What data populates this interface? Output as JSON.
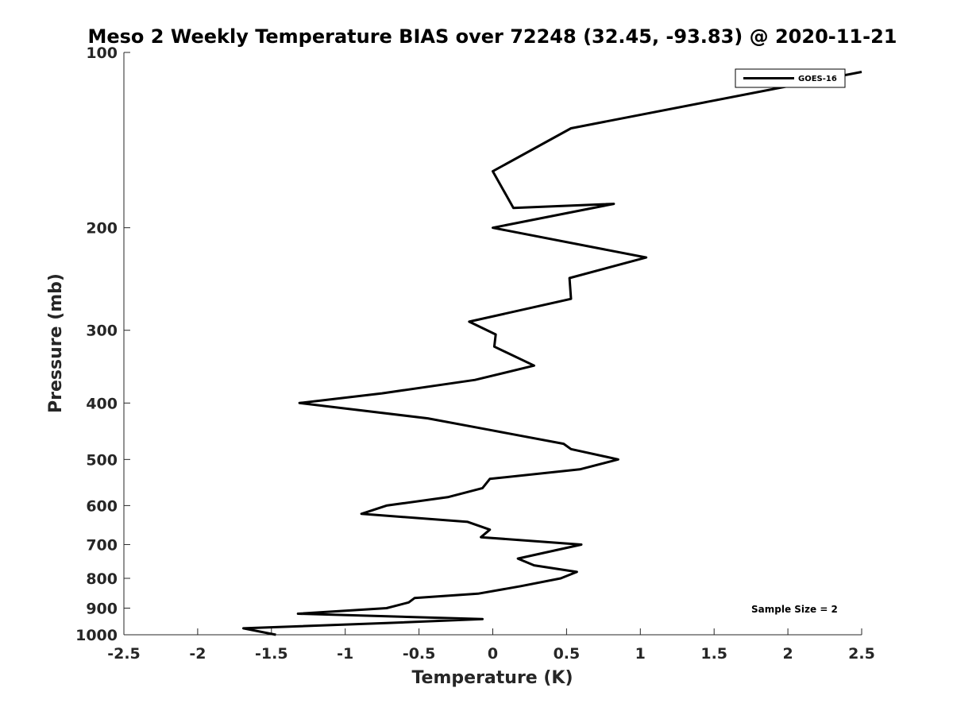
{
  "chart_data": {
    "type": "line",
    "title": "Meso 2 Weekly Temperature BIAS over 72248 (32.45, -93.83) @ 2020-11-21",
    "xlabel": "Temperature (K)",
    "ylabel": "Pressure (mb)",
    "xlim": [
      -2.5,
      2.5
    ],
    "ylim": [
      100,
      1000
    ],
    "y_scale": "log",
    "y_reversed": true,
    "grid": false,
    "xticks": [
      -2.5,
      -2,
      -1.5,
      -1,
      -0.5,
      0,
      0.5,
      1,
      1.5,
      2,
      2.5
    ],
    "xtick_labels": [
      "-2.5",
      "-2",
      "-1.5",
      "-1",
      "-0.5",
      "0",
      "0.5",
      "1",
      "1.5",
      "2",
      "2.5"
    ],
    "yticks": [
      100,
      200,
      300,
      400,
      500,
      600,
      700,
      800,
      900,
      1000
    ],
    "ytick_labels": [
      "100",
      "200",
      "300",
      "400",
      "500",
      "600",
      "700",
      "800",
      "900",
      "1000"
    ],
    "legend_position": "top-right",
    "annotation": "Sample Size = 2",
    "series": [
      {
        "name": "GOES-16",
        "color": "#000000",
        "points": [
          [
            2.5,
            108
          ],
          [
            0.53,
            135
          ],
          [
            0.0,
            160
          ],
          [
            0.14,
            185
          ],
          [
            0.82,
            182
          ],
          [
            0.0,
            200
          ],
          [
            1.04,
            225
          ],
          [
            0.52,
            244
          ],
          [
            0.53,
            265
          ],
          [
            -0.16,
            290
          ],
          [
            0.02,
            305
          ],
          [
            0.01,
            320
          ],
          [
            0.28,
            345
          ],
          [
            -0.12,
            365
          ],
          [
            -0.75,
            385
          ],
          [
            -1.31,
            400
          ],
          [
            -0.44,
            425
          ],
          [
            -0.02,
            445
          ],
          [
            0.48,
            470
          ],
          [
            0.53,
            480
          ],
          [
            0.85,
            500
          ],
          [
            0.59,
            520
          ],
          [
            -0.02,
            540
          ],
          [
            -0.07,
            560
          ],
          [
            -0.3,
            580
          ],
          [
            -0.72,
            600
          ],
          [
            -0.89,
            620
          ],
          [
            -0.17,
            640
          ],
          [
            -0.02,
            660
          ],
          [
            -0.08,
            680
          ],
          [
            0.6,
            700
          ],
          [
            0.17,
            740
          ],
          [
            0.28,
            760
          ],
          [
            0.57,
            780
          ],
          [
            0.46,
            800
          ],
          [
            0.19,
            825
          ],
          [
            -0.1,
            850
          ],
          [
            -0.53,
            865
          ],
          [
            -0.57,
            880
          ],
          [
            -0.72,
            900
          ],
          [
            -1.32,
            920
          ],
          [
            -0.07,
            940
          ],
          [
            -0.72,
            955
          ],
          [
            -1.69,
            975
          ],
          [
            -1.47,
            1000
          ]
        ]
      }
    ]
  }
}
